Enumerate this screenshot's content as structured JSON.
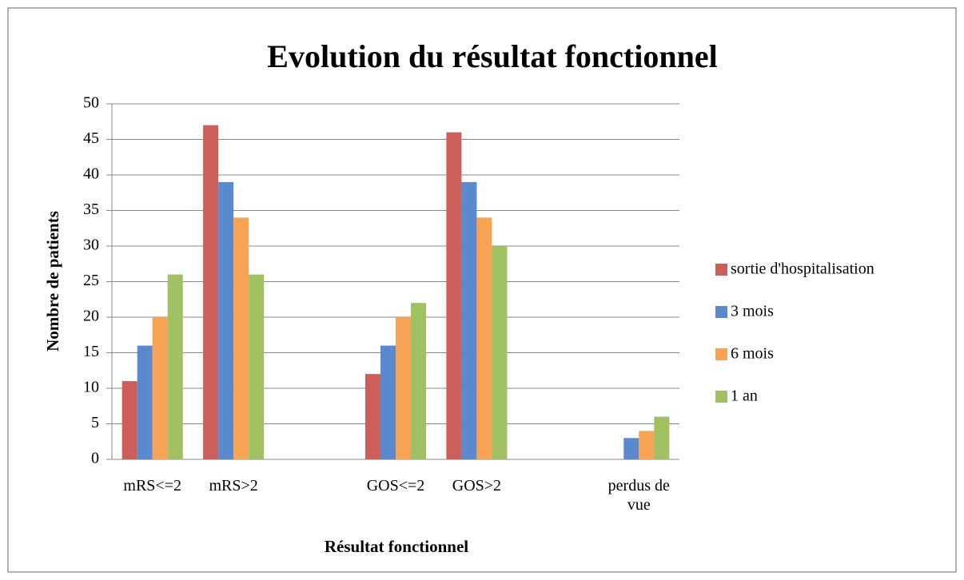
{
  "chart_data": {
    "type": "bar",
    "title": "Evolution du résultat fonctionnel",
    "x_label": "Résultat fonctionnel",
    "y_label": "Nombre de patients",
    "categories": [
      "mRS<=2",
      "mRS>2",
      null,
      "GOS<=2",
      "GOS>2",
      null,
      "perdus de vue"
    ],
    "series": [
      {
        "name": "sortie d'hospitalisation",
        "color": "#cd5f5a",
        "values": [
          11,
          47,
          null,
          12,
          46,
          null,
          null
        ]
      },
      {
        "name": "3 mois",
        "color": "#5a8acd",
        "values": [
          16,
          39,
          null,
          16,
          39,
          null,
          3
        ]
      },
      {
        "name": "6 mois",
        "color": "#f7a354",
        "values": [
          20,
          34,
          null,
          20,
          34,
          null,
          4
        ]
      },
      {
        "name": "1 an",
        "color": "#9fc162",
        "values": [
          26,
          26,
          null,
          22,
          30,
          null,
          6
        ]
      }
    ],
    "ylim": [
      0,
      50
    ],
    "yticks": [
      0,
      5,
      10,
      15,
      20,
      25,
      30,
      35,
      40,
      45,
      50
    ],
    "grid": true,
    "legend": "right"
  }
}
